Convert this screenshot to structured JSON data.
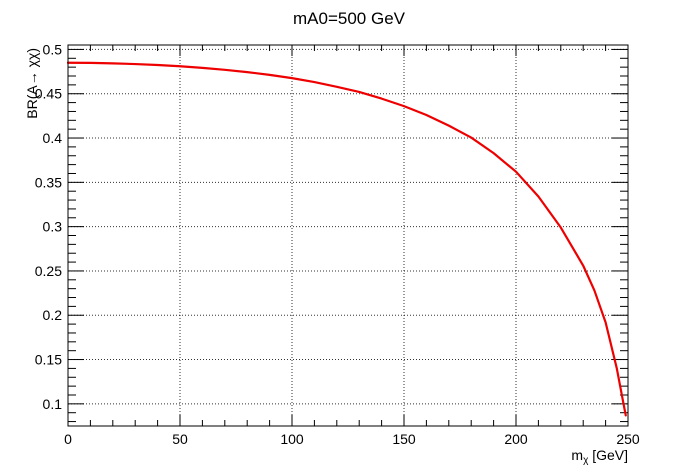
{
  "chart_data": {
    "type": "line",
    "title": "mA0=500 GeV",
    "xlabel": {
      "main": "m",
      "sub": "χ",
      "unit": " [GeV]"
    },
    "ylabel": "BR(A→ χχ)",
    "xlim": [
      0,
      250
    ],
    "ylim": [
      0.075,
      0.505
    ],
    "x_ticks": [
      0,
      50,
      100,
      150,
      200,
      250
    ],
    "y_ticks": [
      0.1,
      0.15,
      0.2,
      0.25,
      0.3,
      0.35,
      0.4,
      0.45,
      0.5
    ],
    "x_tick_labels": [
      "0",
      "50",
      "100",
      "150",
      "200",
      "250"
    ],
    "y_tick_labels": [
      "0.1",
      "0.15",
      "0.2",
      "0.25",
      "0.3",
      "0.35",
      "0.4",
      "0.45",
      "0.5"
    ],
    "grid": true,
    "series": [
      {
        "color": "#ee0000",
        "x": [
          0,
          10,
          20,
          30,
          40,
          50,
          60,
          70,
          80,
          90,
          100,
          110,
          120,
          130,
          140,
          150,
          160,
          170,
          180,
          190,
          200,
          210,
          220,
          230,
          235,
          240,
          245,
          248,
          249
        ],
        "y": [
          0.485,
          0.4848,
          0.4843,
          0.4835,
          0.4824,
          0.481,
          0.4792,
          0.477,
          0.4744,
          0.4713,
          0.4676,
          0.4632,
          0.4578,
          0.452,
          0.4445,
          0.436,
          0.426,
          0.414,
          0.4005,
          0.383,
          0.362,
          0.334,
          0.299,
          0.256,
          0.228,
          0.192,
          0.14,
          0.1,
          0.087
        ]
      }
    ]
  }
}
